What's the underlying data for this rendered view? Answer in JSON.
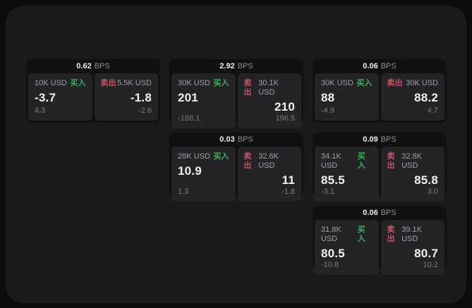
{
  "labels": {
    "bps": "BPS",
    "buy": "买入",
    "sell": "卖出"
  },
  "colors": {
    "page_bg": "#0b0b0c",
    "window_bg": "#1b1b1d",
    "card_bg": "#111113",
    "panel_bg": "#242427",
    "buy_green": "#40ab5e",
    "sell_red": "#cc5065",
    "value_white": "#f1f1f2",
    "label_gray": "#9fa0a3",
    "sub_gray": "#7b7b7e"
  },
  "cards": [
    {
      "bps": "0.62",
      "buy": {
        "amount": "10K USD",
        "value": "-3.7",
        "sub": "4.3"
      },
      "sell": {
        "amount": "5.5K USD",
        "value": "-1.8",
        "sub": "-2.6"
      }
    },
    {
      "bps": "2.92",
      "buy": {
        "amount": "30K USD",
        "value": "201",
        "sub": "-188.1"
      },
      "sell": {
        "amount": "30.1K USD",
        "value": "210",
        "sub": "196.5"
      }
    },
    {
      "bps": "0.06",
      "buy": {
        "amount": "30K USD",
        "value": "88",
        "sub": "-4.9"
      },
      "sell": {
        "amount": "30K USD",
        "value": "88.2",
        "sub": "4.7"
      }
    },
    {
      "bps": "0.03",
      "buy": {
        "amount": "28K USD",
        "value": "10.9",
        "sub": "1.3"
      },
      "sell": {
        "amount": "32.6K USD",
        "value": "11",
        "sub": "-1.8"
      }
    },
    {
      "bps": "0.09",
      "buy": {
        "amount": "34.1K USD",
        "value": "85.5",
        "sub": "-3.1"
      },
      "sell": {
        "amount": "32.8K USD",
        "value": "85.8",
        "sub": "3.0"
      }
    },
    {
      "bps": "0.06",
      "buy": {
        "amount": "31.8K USD",
        "value": "80.5",
        "sub": "-10.8"
      },
      "sell": {
        "amount": "39.1K USD",
        "value": "80.7",
        "sub": "10.2"
      }
    }
  ]
}
